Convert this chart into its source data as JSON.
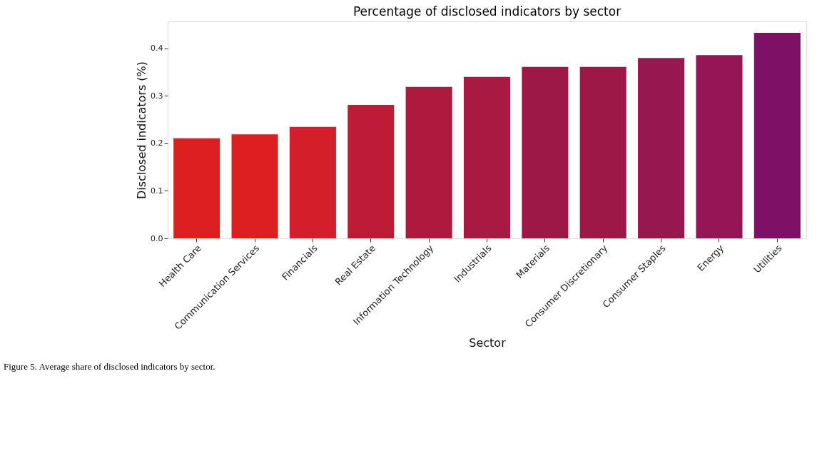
{
  "chart_data": {
    "type": "bar",
    "title": "Percentage of disclosed indicators by sector",
    "xlabel": "Sector",
    "ylabel": "Disclosed indicators (%)",
    "categories": [
      "Health Care",
      "Communication Services",
      "Financials",
      "Real Estate",
      "Information Technology",
      "Industrials",
      "Materials",
      "Consumer Discretionary",
      "Consumer Staples",
      "Energy",
      "Utilities"
    ],
    "values": [
      0.211,
      0.219,
      0.235,
      0.281,
      0.319,
      0.34,
      0.361,
      0.361,
      0.38,
      0.386,
      0.433
    ],
    "colors": [
      "#dc2020",
      "#dc2020",
      "#d41f2a",
      "#be1b36",
      "#b0193e",
      "#a81a42",
      "#9e1847",
      "#9e1847",
      "#971751",
      "#951656",
      "#7e1166"
    ],
    "ylim": [
      0,
      0.457
    ],
    "yticks": [
      {
        "value": 0,
        "label": "0.0"
      },
      0.1,
      0.2,
      0.3,
      0.4
    ],
    "grid": false,
    "legend": false,
    "annotations": [
      "Figure 5. Average share of disclosed indicators by sector."
    ]
  }
}
